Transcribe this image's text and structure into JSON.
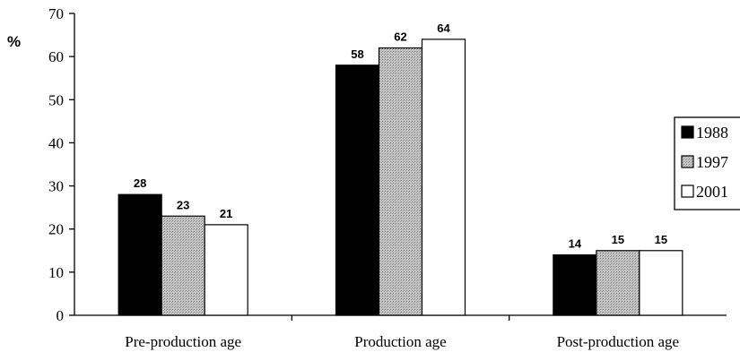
{
  "chart_data": {
    "type": "bar",
    "categories": [
      "Pre-production age",
      "Production age",
      "Post-production age"
    ],
    "series": [
      {
        "name": "1988",
        "values": [
          28,
          58,
          14
        ],
        "fill": "#000000"
      },
      {
        "name": "1997",
        "values": [
          23,
          62,
          15
        ],
        "fill": "#b8b8b8"
      },
      {
        "name": "2001",
        "values": [
          21,
          64,
          15
        ],
        "fill": "#ffffff"
      }
    ],
    "ylabel": "%",
    "ylim": [
      0,
      70
    ],
    "yticks": [
      0,
      10,
      20,
      30,
      40,
      50,
      60,
      70
    ],
    "grid": false,
    "legend": "right",
    "data_labels": true
  }
}
